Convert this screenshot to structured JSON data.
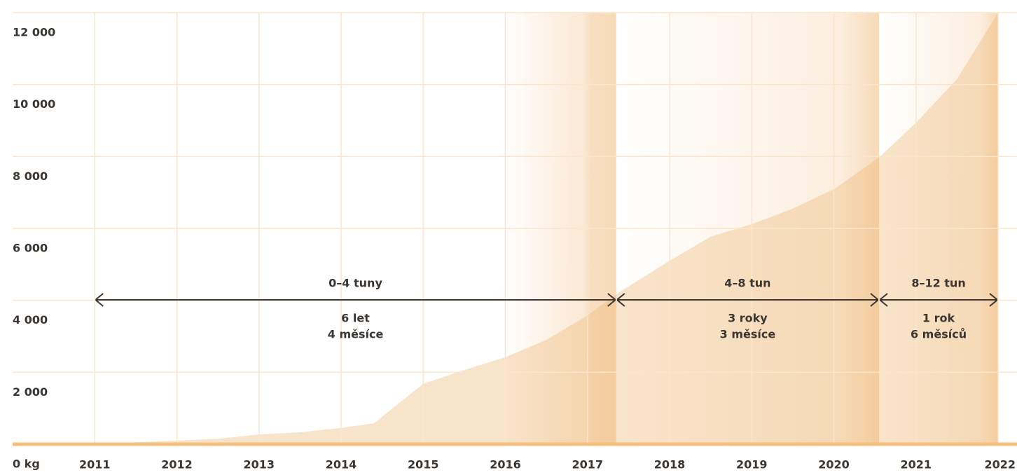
{
  "chart_data": {
    "type": "area",
    "x": [
      2011,
      2012,
      2012.5,
      2013,
      2013.5,
      2014,
      2014.4,
      2014.6,
      2015,
      2015.5,
      2016,
      2016.5,
      2017,
      2017.35,
      2018,
      2018.5,
      2019,
      2019.5,
      2020,
      2020.55,
      2021,
      2021.5,
      2022
    ],
    "values": [
      0,
      100,
      150,
      270,
      330,
      450,
      580,
      950,
      1680,
      2060,
      2420,
      2900,
      3580,
      4170,
      5100,
      5770,
      6120,
      6550,
      7090,
      7970,
      8940,
      10150,
      12000
    ],
    "color": "#f8e4cb",
    "xlim": [
      2010,
      2022.23
    ],
    "xticks": [
      2011,
      2012,
      2013,
      2014,
      2015,
      2016,
      2017,
      2018,
      2019,
      2020,
      2021,
      2022
    ],
    "ylim": [
      0,
      12000
    ],
    "yticks": [
      {
        "value": 0,
        "label": "0 kg"
      },
      {
        "value": 2000,
        "label": "2 000"
      },
      {
        "value": 4000,
        "label": "4 000"
      },
      {
        "value": 6000,
        "label": "6 000"
      },
      {
        "value": 8000,
        "label": "8 000"
      },
      {
        "value": 10000,
        "label": "10 000"
      },
      {
        "value": 12000,
        "label": "12 000"
      }
    ],
    "grid": true,
    "periods": [
      {
        "start": 2011,
        "end": 2017.35,
        "label": "0–4 tuny",
        "duration": [
          "6 let",
          "4 měsíce"
        ]
      },
      {
        "start": 2017.35,
        "end": 2020.55,
        "label": "4–8 tun",
        "duration": [
          "3 roky",
          "3 měsíce"
        ]
      },
      {
        "start": 2020.55,
        "end": 2022,
        "label": "8–12 tun",
        "duration": [
          "1 rok",
          "6 měsíců"
        ]
      }
    ]
  }
}
